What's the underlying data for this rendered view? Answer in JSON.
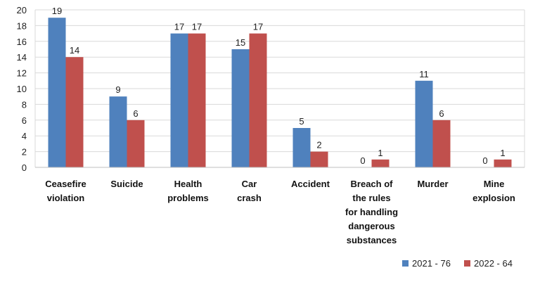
{
  "chart_data": {
    "type": "bar",
    "categories": [
      [
        "Ceasefire",
        "violation"
      ],
      [
        "Suicide"
      ],
      [
        "Health",
        "problems"
      ],
      [
        "Car",
        "crash"
      ],
      [
        "Accident"
      ],
      [
        "Breach of",
        "the rules",
        "for handling",
        "dangerous",
        "substances"
      ],
      [
        "Murder"
      ],
      [
        "Mine",
        "explosion"
      ]
    ],
    "series": [
      {
        "name": "2021 - 76",
        "color": "#4f81bd",
        "values": [
          19,
          9,
          17,
          15,
          5,
          0,
          11,
          0
        ]
      },
      {
        "name": "2022 - 64",
        "color": "#c0504d",
        "values": [
          14,
          6,
          17,
          17,
          2,
          1,
          6,
          1
        ]
      }
    ],
    "yticks": [
      0,
      2,
      4,
      6,
      8,
      10,
      12,
      14,
      16,
      18,
      20
    ],
    "ylim": [
      0,
      20
    ],
    "grid": true,
    "legend": "bottom-right"
  }
}
